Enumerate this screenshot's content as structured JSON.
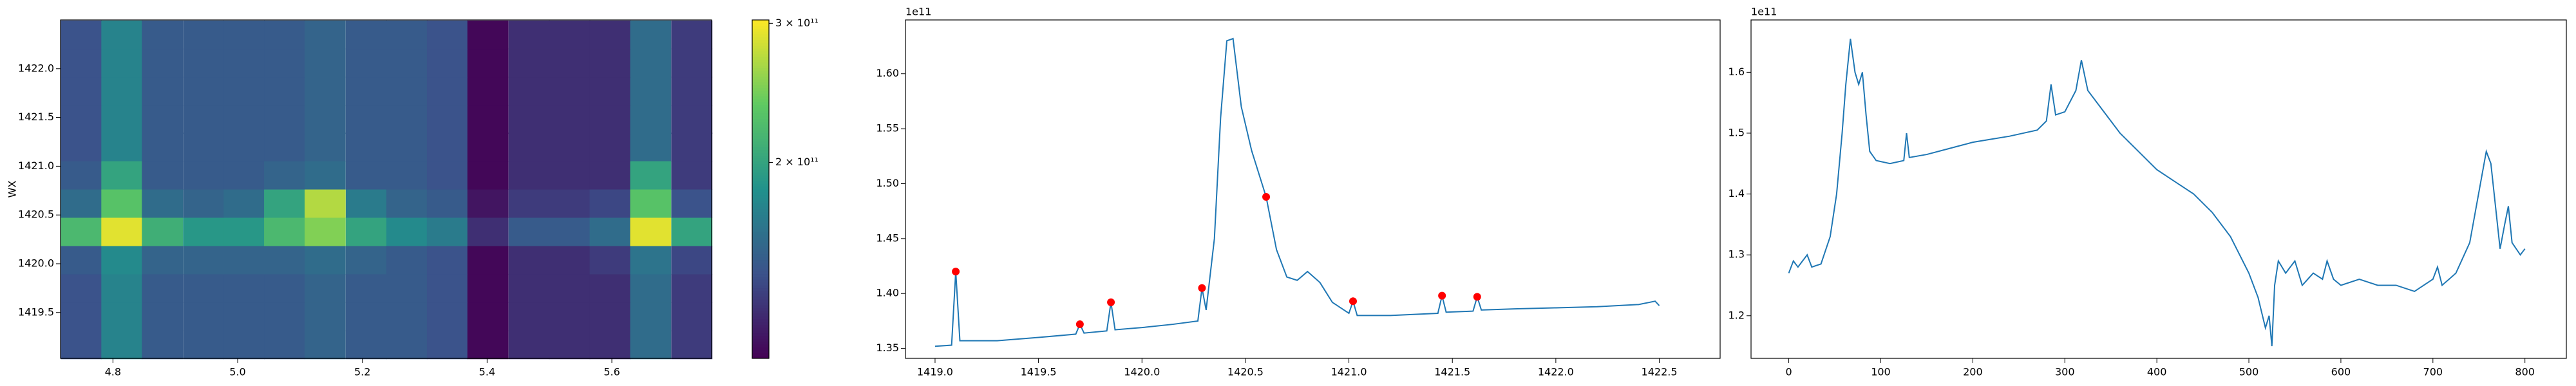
{
  "chart_data": [
    {
      "type": "heatmap",
      "ylabel": "WX",
      "x": [
        4.749,
        4.814,
        4.879,
        4.945,
        5.01,
        5.075,
        5.14,
        5.206,
        5.271,
        5.336,
        5.401,
        5.467,
        5.532,
        5.597,
        5.662,
        5.728
      ],
      "y": [
        1419.17,
        1419.46,
        1419.75,
        1420.04,
        1420.33,
        1420.62,
        1420.91,
        1421.2,
        1421.48,
        1421.77,
        1422.06,
        1422.35
      ],
      "z": [
        [
          145000000000.0,
          175000000000.0,
          150000000000.0,
          150000000000.0,
          150000000000.0,
          150000000000.0,
          155000000000.0,
          150000000000.0,
          150000000000.0,
          145000000000.0,
          115000000000.0,
          130000000000.0,
          130000000000.0,
          130000000000.0,
          160000000000.0,
          135000000000.0
        ],
        [
          145000000000.0,
          175000000000.0,
          150000000000.0,
          150000000000.0,
          150000000000.0,
          150000000000.0,
          155000000000.0,
          150000000000.0,
          150000000000.0,
          145000000000.0,
          115000000000.0,
          130000000000.0,
          130000000000.0,
          130000000000.0,
          160000000000.0,
          135000000000.0
        ],
        [
          145000000000.0,
          175000000000.0,
          150000000000.0,
          150000000000.0,
          150000000000.0,
          150000000000.0,
          155000000000.0,
          150000000000.0,
          150000000000.0,
          145000000000.0,
          115000000000.0,
          130000000000.0,
          130000000000.0,
          130000000000.0,
          160000000000.0,
          135000000000.0
        ],
        [
          150000000000.0,
          180000000000.0,
          155000000000.0,
          155000000000.0,
          155000000000.0,
          155000000000.0,
          160000000000.0,
          155000000000.0,
          150000000000.0,
          145000000000.0,
          115000000000.0,
          130000000000.0,
          130000000000.0,
          135000000000.0,
          165000000000.0,
          140000000000.0
        ],
        [
          220000000000.0,
          290000000000.0,
          210000000000.0,
          190000000000.0,
          190000000000.0,
          220000000000.0,
          250000000000.0,
          200000000000.0,
          180000000000.0,
          170000000000.0,
          130000000000.0,
          150000000000.0,
          150000000000.0,
          160000000000.0,
          290000000000.0,
          200000000000.0
        ],
        [
          160000000000.0,
          230000000000.0,
          160000000000.0,
          155000000000.0,
          160000000000.0,
          200000000000.0,
          270000000000.0,
          170000000000.0,
          155000000000.0,
          150000000000.0,
          120000000000.0,
          135000000000.0,
          135000000000.0,
          140000000000.0,
          230000000000.0,
          145000000000.0
        ],
        [
          150000000000.0,
          200000000000.0,
          150000000000.0,
          150000000000.0,
          150000000000.0,
          155000000000.0,
          160000000000.0,
          150000000000.0,
          150000000000.0,
          145000000000.0,
          115000000000.0,
          130000000000.0,
          130000000000.0,
          130000000000.0,
          200000000000.0,
          135000000000.0
        ],
        [
          145000000000.0,
          175000000000.0,
          150000000000.0,
          150000000000.0,
          150000000000.0,
          150000000000.0,
          155000000000.0,
          150000000000.0,
          150000000000.0,
          145000000000.0,
          115000000000.0,
          130000000000.0,
          130000000000.0,
          130000000000.0,
          160000000000.0,
          135000000000.0
        ],
        [
          145000000000.0,
          175000000000.0,
          150000000000.0,
          150000000000.0,
          150000000000.0,
          150000000000.0,
          155000000000.0,
          150000000000.0,
          150000000000.0,
          145000000000.0,
          115000000000.0,
          130000000000.0,
          130000000000.0,
          130000000000.0,
          160000000000.0,
          135000000000.0
        ],
        [
          145000000000.0,
          175000000000.0,
          150000000000.0,
          150000000000.0,
          150000000000.0,
          150000000000.0,
          155000000000.0,
          150000000000.0,
          150000000000.0,
          145000000000.0,
          115000000000.0,
          130000000000.0,
          130000000000.0,
          130000000000.0,
          160000000000.0,
          135000000000.0
        ],
        [
          145000000000.0,
          175000000000.0,
          150000000000.0,
          150000000000.0,
          150000000000.0,
          150000000000.0,
          155000000000.0,
          150000000000.0,
          150000000000.0,
          145000000000.0,
          115000000000.0,
          130000000000.0,
          130000000000.0,
          130000000000.0,
          160000000000.0,
          135000000000.0
        ],
        [
          145000000000.0,
          175000000000.0,
          150000000000.0,
          150000000000.0,
          150000000000.0,
          150000000000.0,
          155000000000.0,
          150000000000.0,
          150000000000.0,
          145000000000.0,
          115000000000.0,
          130000000000.0,
          130000000000.0,
          130000000000.0,
          160000000000.0,
          135000000000.0
        ]
      ],
      "xlim": [
        4.716,
        5.76
      ],
      "ylim": [
        1419.03,
        1422.5
      ],
      "xticks": [
        4.8,
        {
          "value": 5,
          "label": "5.0"
        },
        5.2,
        5.4,
        5.6
      ],
      "yticks": [
        1419.5,
        {
          "value": 1420,
          "label": "1420.0"
        },
        1420.5,
        {
          "value": 1421,
          "label": "1421.0"
        },
        1421.5,
        {
          "value": 1422,
          "label": "1422.0"
        }
      ],
      "colormap": "viridis",
      "color_scale": "log",
      "clim": [
        113000000000.0,
        303000000000.0
      ],
      "cticks": [
        {
          "value": 200000000000.0,
          "label": "2 × 10¹¹"
        },
        {
          "value": 300000000000.0,
          "label": "3 × 10¹¹"
        }
      ]
    },
    {
      "type": "line",
      "y_offset_label": "1e11",
      "xlim": [
        1418.857,
        1422.794
      ],
      "ylim": [
        1.341,
        1.649
      ],
      "xticks": [
        {
          "value": 1419,
          "label": "1419.0"
        },
        1419.5,
        {
          "value": 1420,
          "label": "1420.0"
        },
        1420.5,
        {
          "value": 1421,
          "label": "1421.0"
        },
        1421.5,
        {
          "value": 1422,
          "label": "1422.0"
        },
        1422.5
      ],
      "yticks": [
        1.35,
        {
          "value": 1.4,
          "label": "1.40"
        },
        1.45,
        {
          "value": 1.5,
          "label": "1.50"
        },
        1.55,
        {
          "value": 1.6,
          "label": "1.60"
        }
      ],
      "series": [
        {
          "style": "line",
          "color": "#1f77b4",
          "x": [
            1419.0,
            1419.08,
            1419.1,
            1419.12,
            1419.3,
            1419.5,
            1419.68,
            1419.7,
            1419.72,
            1419.83,
            1419.85,
            1419.87,
            1420.0,
            1420.15,
            1420.27,
            1420.29,
            1420.31,
            1420.35,
            1420.38,
            1420.41,
            1420.44,
            1420.48,
            1420.53,
            1420.6,
            1420.65,
            1420.7,
            1420.75,
            1420.8,
            1420.86,
            1420.92,
            1421.0,
            1421.02,
            1421.04,
            1421.2,
            1421.43,
            1421.45,
            1421.47,
            1421.6,
            1421.62,
            1421.64,
            1421.8,
            1422.0,
            1422.2,
            1422.4,
            1422.48,
            1422.5
          ],
          "values": [
            1.352,
            1.353,
            1.42,
            1.357,
            1.357,
            1.36,
            1.363,
            1.372,
            1.364,
            1.366,
            1.392,
            1.367,
            1.369,
            1.372,
            1.375,
            1.405,
            1.385,
            1.45,
            1.56,
            1.63,
            1.632,
            1.57,
            1.53,
            1.488,
            1.44,
            1.415,
            1.412,
            1.42,
            1.41,
            1.392,
            1.382,
            1.393,
            1.38,
            1.38,
            1.382,
            1.398,
            1.383,
            1.384,
            1.397,
            1.385,
            1.386,
            1.387,
            1.388,
            1.39,
            1.393,
            1.389
          ]
        },
        {
          "style": "markers",
          "color": "#ff0000",
          "x": [
            1419.1,
            1419.7,
            1419.85,
            1420.29,
            1420.6,
            1421.02,
            1421.45,
            1421.62
          ],
          "values": [
            1.42,
            1.372,
            1.392,
            1.405,
            1.488,
            1.393,
            1.398,
            1.397
          ]
        }
      ]
    },
    {
      "type": "line",
      "y_offset_label": "1e11",
      "xlim": [
        -41,
        845
      ],
      "ylim": [
        1.13,
        1.686
      ],
      "xticks": [
        0,
        100,
        200,
        300,
        400,
        500,
        600,
        700,
        800
      ],
      "yticks": [
        1.2,
        1.3,
        1.4,
        1.5,
        1.6
      ],
      "series": [
        {
          "style": "line",
          "color": "#1f77b4",
          "x": [
            0,
            5,
            10,
            15,
            20,
            25,
            35,
            45,
            52,
            58,
            62,
            67,
            72,
            76,
            80,
            84,
            88,
            95,
            110,
            125,
            128,
            131,
            150,
            175,
            200,
            220,
            240,
            255,
            270,
            280,
            285,
            290,
            300,
            312,
            318,
            325,
            340,
            360,
            380,
            400,
            420,
            440,
            460,
            480,
            500,
            510,
            518,
            522,
            525,
            528,
            532,
            540,
            550,
            558,
            570,
            580,
            585,
            592,
            600,
            620,
            640,
            660,
            680,
            700,
            705,
            710,
            725,
            740,
            752,
            758,
            763,
            768,
            773,
            778,
            782,
            786,
            795,
            800
          ],
          "values": [
            1.27,
            1.29,
            1.28,
            1.29,
            1.3,
            1.28,
            1.285,
            1.33,
            1.4,
            1.5,
            1.58,
            1.655,
            1.6,
            1.58,
            1.6,
            1.53,
            1.47,
            1.455,
            1.45,
            1.455,
            1.5,
            1.46,
            1.465,
            1.475,
            1.485,
            1.49,
            1.495,
            1.5,
            1.505,
            1.52,
            1.58,
            1.53,
            1.535,
            1.57,
            1.62,
            1.57,
            1.54,
            1.5,
            1.47,
            1.44,
            1.42,
            1.4,
            1.37,
            1.33,
            1.27,
            1.23,
            1.18,
            1.2,
            1.15,
            1.25,
            1.29,
            1.27,
            1.29,
            1.25,
            1.27,
            1.26,
            1.29,
            1.26,
            1.25,
            1.26,
            1.25,
            1.25,
            1.24,
            1.26,
            1.28,
            1.25,
            1.27,
            1.32,
            1.42,
            1.47,
            1.45,
            1.38,
            1.31,
            1.35,
            1.38,
            1.32,
            1.3,
            1.31
          ]
        }
      ]
    }
  ]
}
